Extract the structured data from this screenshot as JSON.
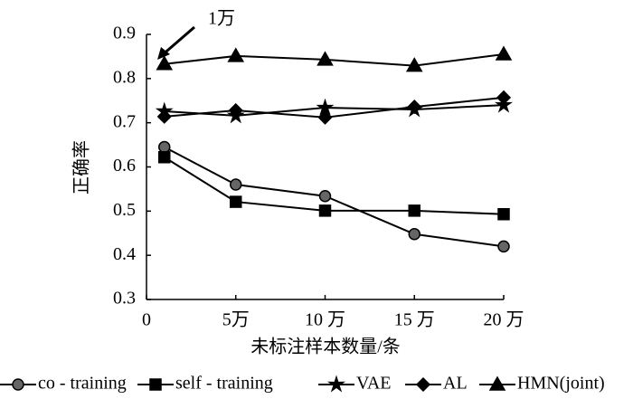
{
  "chart_data": {
    "type": "line",
    "annotation": "1万",
    "xlabel": "未标注样本数量/条",
    "ylabel": "正确率",
    "x": [
      1,
      5,
      10,
      15,
      20
    ],
    "xlim": [
      0,
      20
    ],
    "xticks": [
      0,
      {
        "value": 5,
        "label": "5万"
      },
      {
        "value": 10,
        "label": "10 万"
      },
      {
        "value": 15,
        "label": "15 万"
      },
      {
        "value": 20,
        "label": "20 万"
      }
    ],
    "ylim": [
      0.3,
      0.9
    ],
    "yticks": [
      0.3,
      0.4,
      0.5,
      0.6,
      0.7,
      0.8,
      0.9
    ],
    "grid": false,
    "legend": "bottom",
    "series": [
      {
        "name": "co - training",
        "color": "#000000",
        "marker": "circle",
        "values": [
          0.645,
          0.56,
          0.534,
          0.448,
          0.42
        ]
      },
      {
        "name": "self - training",
        "color": "#000000",
        "marker": "square",
        "values": [
          0.622,
          0.521,
          0.501,
          0.501,
          0.493
        ]
      },
      {
        "name": "VAE",
        "color": "#000000",
        "marker": "star",
        "values": [
          0.726,
          0.716,
          0.734,
          0.73,
          0.74
        ]
      },
      {
        "name": "AL",
        "color": "#000000",
        "marker": "diamond",
        "values": [
          0.714,
          0.728,
          0.712,
          0.736,
          0.757
        ]
      },
      {
        "name": "HMN(joint)",
        "color": "#000000",
        "marker": "triangle",
        "values": [
          0.833,
          0.851,
          0.843,
          0.829,
          0.855
        ]
      }
    ]
  }
}
